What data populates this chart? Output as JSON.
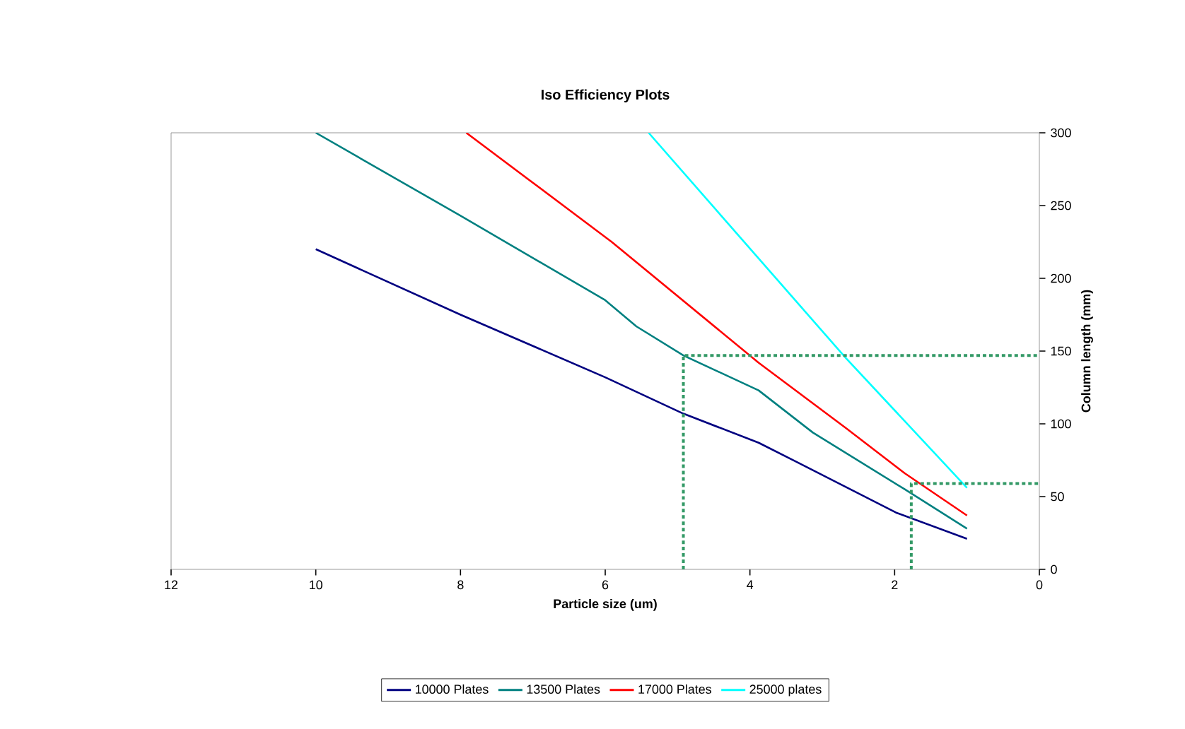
{
  "chart_data": {
    "type": "line",
    "title": "Iso Efficiency Plots",
    "xlabel": "Particle size (um)",
    "ylabel": "Column length (mm)",
    "xlim": [
      12,
      0
    ],
    "xticks": [
      0,
      2,
      4,
      6,
      8,
      10,
      12
    ],
    "ylim": [
      0,
      300
    ],
    "yticks": [
      0,
      50,
      100,
      150,
      200,
      250,
      300
    ],
    "grid": false,
    "legend": "bottom",
    "marker": "none",
    "series": [
      {
        "name": "10000 Plates",
        "color": "#000080",
        "line_style": "solid",
        "x": [
          10,
          8,
          6,
          5.57,
          4.92,
          3.88,
          3.36,
          1.98,
          1
        ],
        "values": [
          220,
          175,
          132,
          122,
          107,
          87,
          74,
          39,
          21
        ]
      },
      {
        "name": "13500 Plates",
        "color": "#008080",
        "line_style": "solid",
        "x": [
          10,
          8,
          6,
          5.57,
          4.92,
          3.88,
          3.13,
          1.86,
          1
        ],
        "values": [
          300,
          243,
          185,
          167,
          147,
          123,
          94,
          55,
          28
        ]
      },
      {
        "name": "17000 Plates",
        "color": "#ff0000",
        "line_style": "solid",
        "x": [
          7.92,
          5.91,
          3.88,
          2.67,
          1.86,
          1
        ],
        "values": [
          300,
          225,
          142,
          97,
          66,
          37
        ]
      },
      {
        "name": "25000 plates",
        "color": "#00ffff",
        "line_style": "solid",
        "x": [
          5.4,
          2.67,
          1
        ],
        "values": [
          300,
          145,
          56
        ]
      },
      {
        "color": "#339966",
        "line_style": "dotted",
        "x": [
          4.92,
          4.92,
          0
        ],
        "values": [
          0,
          147,
          147
        ]
      },
      {
        "color": "#339966",
        "line_style": "dotted",
        "x": [
          1.77,
          1.77,
          0
        ],
        "values": [
          0,
          59,
          59
        ]
      }
    ]
  }
}
